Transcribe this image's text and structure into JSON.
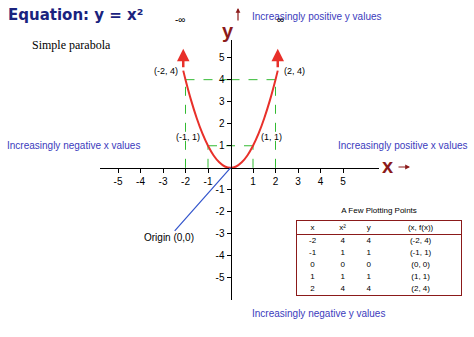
{
  "chart_data": {
    "type": "line",
    "title": "Equation: y = x²",
    "subtitle": "Simple parabola",
    "x_label": "x",
    "y_label": "y",
    "x": [
      -2.1,
      -2,
      -1.75,
      -1.5,
      -1.25,
      -1,
      -0.75,
      -0.5,
      -0.25,
      0,
      0.25,
      0.5,
      0.75,
      1,
      1.25,
      1.5,
      1.75,
      2,
      2.1
    ],
    "values": [
      4.41,
      4,
      3.06,
      2.25,
      1.56,
      1,
      0.56,
      0.25,
      0.06,
      0,
      0.06,
      0.25,
      0.56,
      1,
      1.56,
      2.25,
      3.06,
      4,
      4.41
    ],
    "color": "#e8302a",
    "line_style": "solid",
    "grid": false,
    "xlim": [
      -5.8,
      6.6
    ],
    "ylim": [
      -6,
      5.8
    ],
    "xticks": [
      -5,
      -4,
      -3,
      -2,
      -1,
      1,
      2,
      3,
      4,
      5
    ],
    "yticks": [
      -5,
      -4,
      -3,
      -2,
      -1,
      1,
      2,
      3,
      4,
      5
    ],
    "points": [
      {
        "x": -2,
        "y": 4,
        "label": "(-2, 4)"
      },
      {
        "x": -1,
        "y": 1,
        "label": "(-1, 1)"
      },
      {
        "x": 1,
        "y": 1,
        "label": "(1, 1)"
      },
      {
        "x": 2,
        "y": 4,
        "label": "(2, 4)"
      }
    ],
    "origin": {
      "x": 0,
      "y": 0,
      "label": "Origin (0,0)"
    },
    "limit_labels": [
      "-∞",
      "∞"
    ],
    "annotations": [
      "Increasingly positive y values",
      "Increasingly negative x values",
      "Increasingly positive x values",
      "Increasingly negative y values"
    ]
  },
  "table": {
    "title": "A Few Plotting Points",
    "header": [
      "x",
      "x²",
      "y",
      "(x, f(x))"
    ],
    "rows": [
      [
        -2,
        4,
        4,
        "(-2, 4)"
      ],
      [
        -1,
        1,
        1,
        "(-1, 1)"
      ],
      [
        0,
        0,
        0,
        "(0, 0)"
      ],
      [
        1,
        1,
        1,
        "(1, 1)"
      ],
      [
        2,
        4,
        4,
        "(2, 4)"
      ]
    ]
  }
}
